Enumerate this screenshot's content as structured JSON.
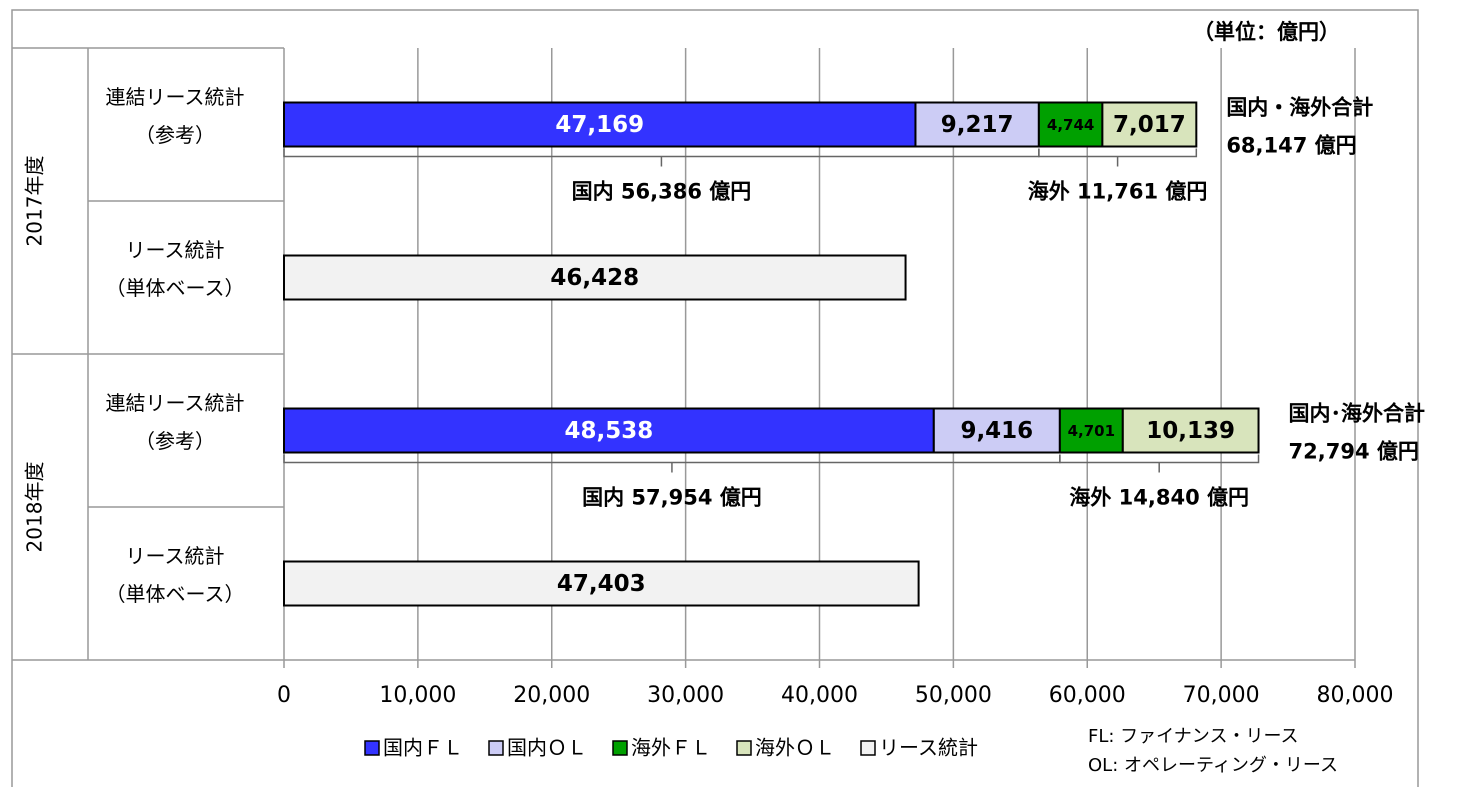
{
  "chart_data": {
    "type": "stacked-barh",
    "unit_label": "（単位：億円）",
    "groups": [
      "2017年度",
      "2018年度"
    ],
    "categories": [
      [
        "連結リース統計",
        "（参考）"
      ],
      [
        "リース統計",
        "（単体ベース）"
      ],
      [
        "連結リース統計",
        "（参考）"
      ],
      [
        "リース統計",
        "（単体ベース）"
      ]
    ],
    "series": [
      {
        "name": "国内ＦＬ",
        "color": "#3333ff",
        "label_color": "#ffffff",
        "values": [
          47169,
          null,
          48538,
          null
        ],
        "value_labels": [
          "47,169",
          null,
          "48,538",
          null
        ]
      },
      {
        "name": "国内ＯＬ",
        "color": "#ccccf5",
        "label_color": "#000000",
        "values": [
          9217,
          null,
          9416,
          null
        ],
        "value_labels": [
          "9,217",
          null,
          "9,416",
          null
        ]
      },
      {
        "name": "海外ＦＬ",
        "color": "#00a000",
        "label_color": "#000000",
        "values": [
          4744,
          null,
          4701,
          null
        ],
        "value_labels": [
          "4,744",
          null,
          "4,701",
          null
        ]
      },
      {
        "name": "海外ＯＬ",
        "color": "#d8e4bc",
        "label_color": "#000000",
        "values": [
          7017,
          null,
          10139,
          null
        ],
        "value_labels": [
          "7,017",
          null,
          "10,139",
          null
        ]
      },
      {
        "name": "リース統計",
        "color": "#f2f2f2",
        "label_color": "#000000",
        "values": [
          null,
          46428,
          null,
          47403
        ],
        "value_labels": [
          null,
          "46,428",
          null,
          "47,403"
        ]
      }
    ],
    "annotations": [
      {
        "domestic": "国内 56,386 億円",
        "overseas": "海外 11,761 億円",
        "total": [
          "国内・海外合計",
          "68,147 億円"
        ]
      },
      null,
      {
        "domestic": "国内 57,954 億円",
        "overseas": "海外 14,840 億円",
        "total": [
          "国内･海外合計",
          "72,794 億円"
        ]
      },
      null
    ],
    "xlim": [
      0,
      80000
    ],
    "xticks": [
      0,
      {
        "value": 10000,
        "label": "10,000"
      },
      {
        "value": 20000,
        "label": "20,000"
      },
      {
        "value": 30000,
        "label": "30,000"
      },
      {
        "value": 40000,
        "label": "40,000"
      },
      {
        "value": 50000,
        "label": "50,000"
      },
      {
        "value": 60000,
        "label": "60,000"
      },
      {
        "value": 70000,
        "label": "70,000"
      },
      {
        "value": 80000,
        "label": "80,000"
      }
    ],
    "grid": true,
    "notes": [
      "FL: ファイナンス・リース",
      "OL: オペレーティング・リース"
    ]
  }
}
